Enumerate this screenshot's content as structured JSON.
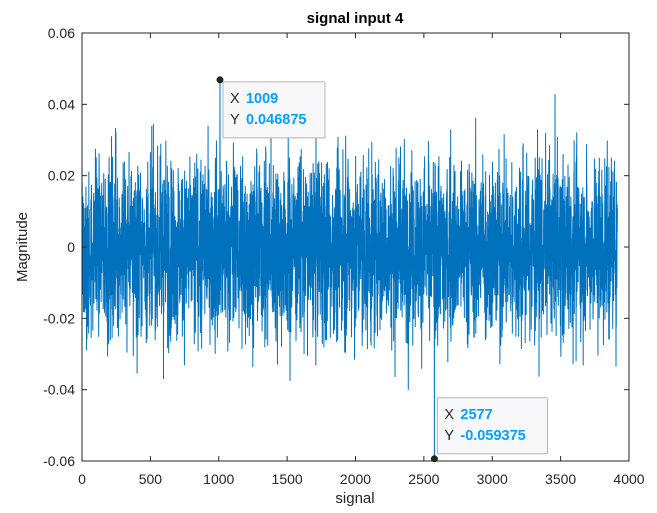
{
  "chart_data": {
    "type": "line",
    "title": "signal input 4",
    "xlabel": "signal",
    "ylabel": "Magnitude",
    "xlim": [
      0,
      4000
    ],
    "ylim": [
      -0.06,
      0.06
    ],
    "xticks": [
      0,
      500,
      1000,
      1500,
      2000,
      2500,
      3000,
      3500,
      4000
    ],
    "xtick_labels": [
      "0",
      "500",
      "1000",
      "1500",
      "2000",
      "2500",
      "3000",
      "3500",
      "4000"
    ],
    "yticks": [
      -0.06,
      -0.04,
      -0.02,
      0,
      0.02,
      0.04,
      0.06
    ],
    "ytick_labels": [
      "-0.06",
      "-0.04",
      "-0.02",
      "0",
      "0.02",
      "0.04",
      "0.06"
    ],
    "grid": false,
    "line_color": "#0072BD",
    "sample_count": 3915,
    "series": [
      {
        "description": "noise-like signal centered at 0, typical range about ±0.03",
        "x_start": 1,
        "x_end": 3915,
        "peaks": [
          {
            "x": 1009,
            "y": 0.046875
          },
          {
            "x": 2577,
            "y": -0.059375
          }
        ]
      }
    ],
    "datatips": [
      {
        "x_key": "X",
        "x_value": "1009",
        "y_key": "Y",
        "y_value": "0.046875"
      },
      {
        "x_key": "X",
        "x_value": "2577",
        "y_key": "Y",
        "y_value": "-0.059375"
      }
    ],
    "colors": {
      "line": "#0072BD",
      "datatip_value": "#00A2FF",
      "datatip_bg": "#F8F8FA",
      "axes": "#262626"
    }
  }
}
